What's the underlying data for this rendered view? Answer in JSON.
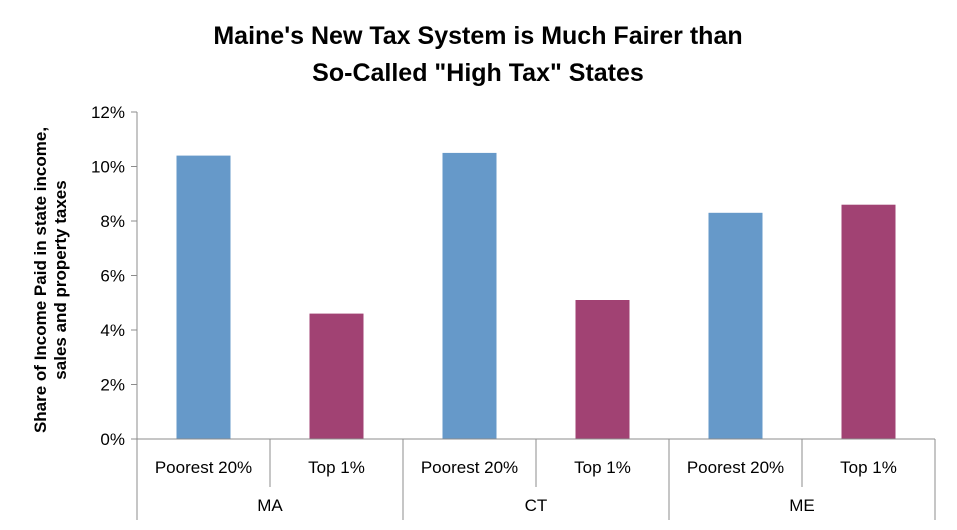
{
  "chart_data": {
    "type": "bar",
    "title_lines": [
      "Maine's New Tax System is Much Fairer than",
      "So-Called \"High Tax\" States"
    ],
    "ylabel_lines": [
      "Share of Income Paid in state income,",
      "sales and property taxes"
    ],
    "xlabel": "",
    "ylim": [
      0,
      12
    ],
    "yticks": [
      0,
      2,
      4,
      6,
      8,
      10,
      12
    ],
    "ytick_labels": [
      "0%",
      "2%",
      "4%",
      "6%",
      "8%",
      "10%",
      "12%"
    ],
    "grid": false,
    "legend": "none",
    "groups": [
      "MA",
      "CT",
      "ME"
    ],
    "categories": [
      "Poorest 20%",
      "Top 1%",
      "Poorest 20%",
      "Top 1%",
      "Poorest 20%",
      "Top 1%"
    ],
    "values": [
      10.4,
      4.6,
      10.5,
      5.1,
      8.3,
      8.6
    ],
    "colors": [
      "#6699c9",
      "#a14273",
      "#6699c9",
      "#a14273",
      "#6699c9",
      "#a14273"
    ]
  }
}
